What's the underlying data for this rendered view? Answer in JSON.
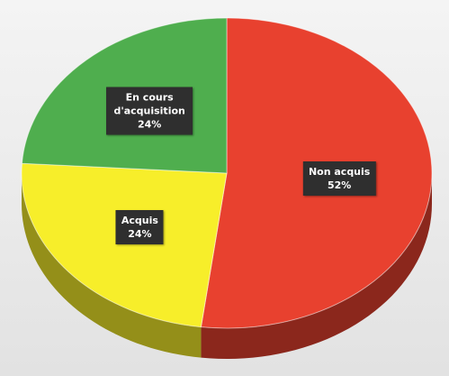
{
  "chart_data": {
    "type": "pie",
    "categories": [
      "Non acquis",
      "Acquis",
      "En cours d'acquisition"
    ],
    "values": [
      52,
      24,
      24
    ],
    "value_labels": [
      "52%",
      "24%",
      "24%"
    ],
    "colors": [
      "#e8412f",
      "#f7ee2a",
      "#4fae4e"
    ]
  }
}
